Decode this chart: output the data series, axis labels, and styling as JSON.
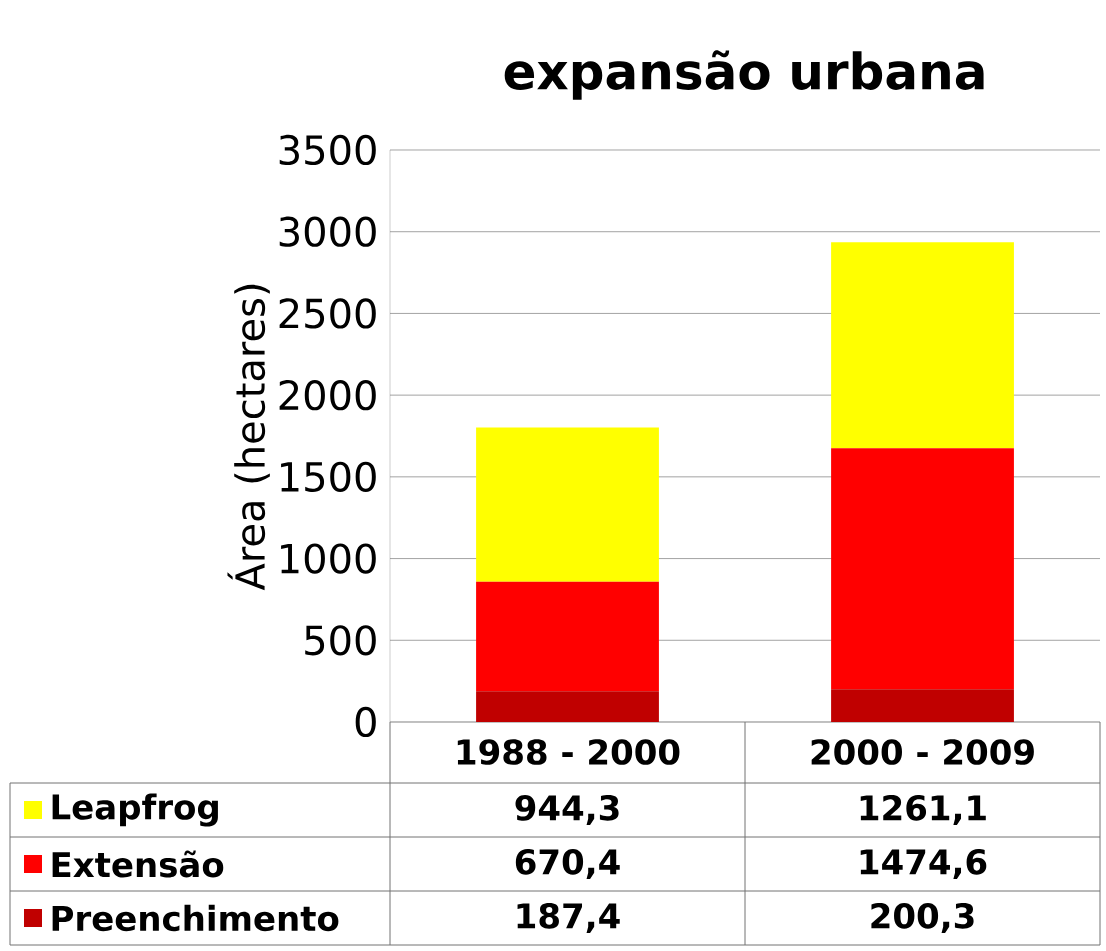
{
  "chart_data": {
    "type": "bar",
    "title": "expansão urbana",
    "ylabel": "Área (hectares)",
    "categories": [
      "1988 - 2000",
      "2000 - 2009"
    ],
    "series": [
      {
        "name": "Preenchimento",
        "color": "#c00000",
        "values": [
          187.4,
          200.3
        ],
        "value_labels": [
          "187,4",
          "200,3"
        ]
      },
      {
        "name": "Extensão",
        "color": "#ff0000",
        "values": [
          670.4,
          1474.6
        ],
        "value_labels": [
          "670,4",
          "1474,6"
        ]
      },
      {
        "name": "Leapfrog",
        "color": "#ffff00",
        "values": [
          944.3,
          1261.1
        ],
        "value_labels": [
          "944,3",
          "1261,1"
        ]
      }
    ],
    "stacked": true,
    "ylim": [
      0,
      3500
    ],
    "yticks": [
      0,
      500,
      1000,
      1500,
      2000,
      2500,
      3000,
      3500
    ],
    "grid": "y",
    "legend": "bottom"
  }
}
